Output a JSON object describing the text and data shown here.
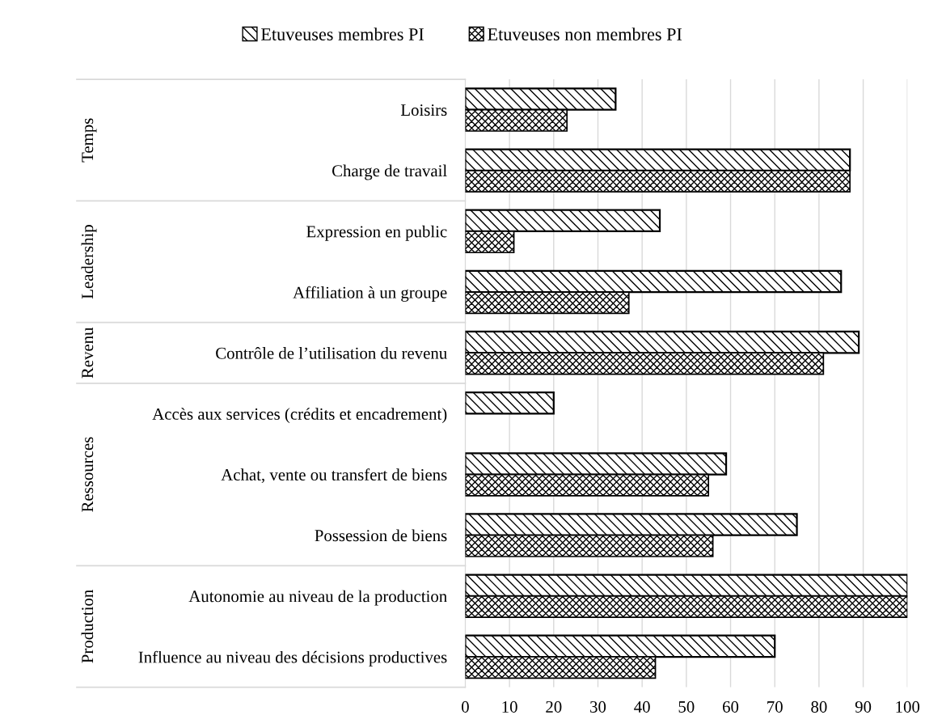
{
  "chart_data": {
    "type": "bar",
    "orientation": "horizontal",
    "categories": [
      "Loisirs",
      "Charge de travail",
      "Expression en public",
      "Affiliation à un groupe",
      "Contrôle de l’utilisation du revenu",
      "Accès aux services (crédits et encadrement)",
      "Achat, vente ou transfert de biens",
      "Possession de biens",
      "Autonomie au niveau de la production",
      "Influence au niveau des décisions productives"
    ],
    "series": [
      {
        "name": "Etuveuses membres PI",
        "color": "#000000",
        "values": [
          34,
          87,
          44,
          85,
          89,
          20,
          59,
          75,
          100,
          70
        ]
      },
      {
        "name": "Etuveuses non membres PI",
        "color": "#000000",
        "values": [
          23,
          87,
          11,
          37,
          81,
          null,
          55,
          56,
          100,
          43
        ]
      }
    ],
    "xlim": [
      0,
      100
    ],
    "xticks": [
      0,
      10,
      20,
      30,
      40,
      50,
      60,
      70,
      80,
      90,
      100
    ],
    "grid": "x",
    "legend": "top",
    "annotations": [
      "Temps",
      "Leadership",
      "Revenu",
      "Ressources",
      "Production"
    ]
  }
}
